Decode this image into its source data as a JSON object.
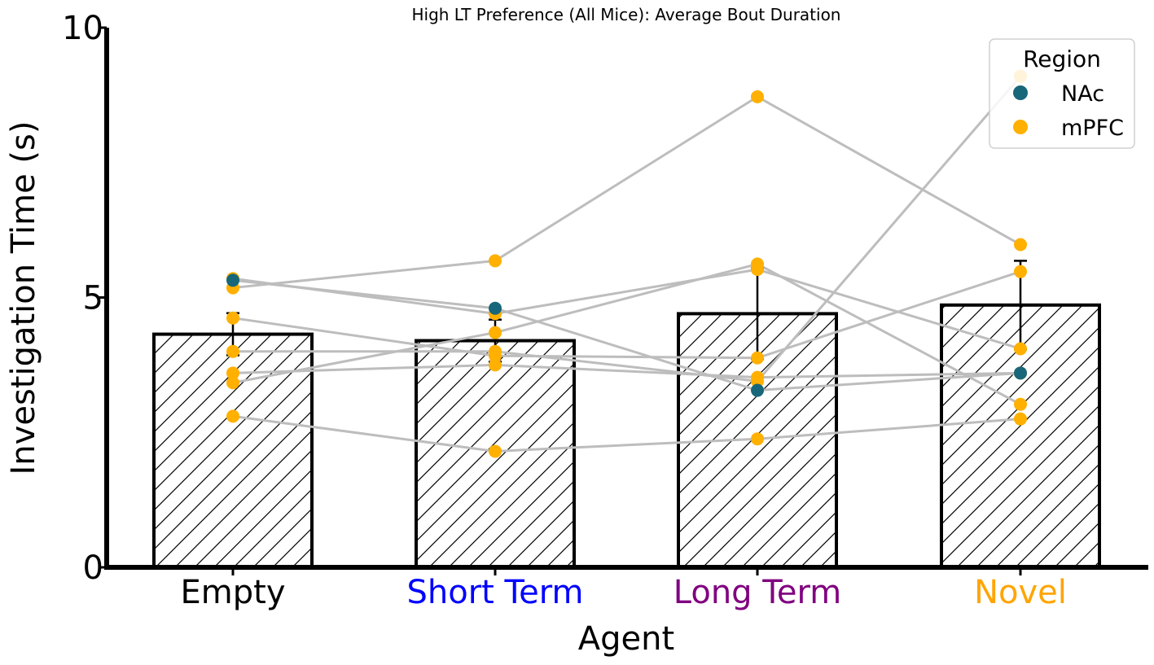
{
  "chart_data": {
    "type": "bar",
    "title": "High LT Preference (All Mice): Average Bout Duration",
    "xlabel": "Agent",
    "ylabel": "Investigation Time (s)",
    "ylim": [
      0,
      10
    ],
    "yticks": [
      0,
      5,
      10
    ],
    "categories": [
      "Empty",
      "Short Term",
      "Long Term",
      "Novel"
    ],
    "category_colors": [
      "#000000",
      "#0000ff",
      "#800080",
      "#ffa500"
    ],
    "bars": [
      {
        "category": "Empty",
        "mean": 4.32,
        "error": 0.39
      },
      {
        "category": "Short Term",
        "mean": 4.2,
        "error": 0.39
      },
      {
        "category": "Long Term",
        "mean": 4.7,
        "error": 0.84
      },
      {
        "category": "Novel",
        "mean": 4.86,
        "error": 0.82
      }
    ],
    "bar_hatch": "diagonal",
    "legend": {
      "title": "Region",
      "position": "top-right",
      "entries": [
        {
          "label": "NAc",
          "color": "#17667a"
        },
        {
          "label": "mPFC",
          "color": "#ffb000"
        }
      ]
    },
    "line_color": "#bdbdbd",
    "subjects": [
      {
        "region": "NAc",
        "values": [
          5.32,
          4.8,
          3.28,
          3.6
        ]
      },
      {
        "region": "mPFC",
        "values": [
          5.35,
          4.7,
          5.52,
          4.05
        ]
      },
      {
        "region": "mPFC",
        "values": [
          5.18,
          5.68,
          8.72,
          5.98
        ]
      },
      {
        "region": "mPFC",
        "values": [
          4.62,
          3.92,
          3.88,
          5.48
        ]
      },
      {
        "region": "mPFC",
        "values": [
          3.6,
          3.75,
          3.52,
          3.6
        ]
      },
      {
        "region": "mPFC",
        "values": [
          3.42,
          4.35,
          5.62,
          3.02
        ]
      },
      {
        "region": "mPFC",
        "values": [
          2.8,
          2.15,
          2.38,
          2.75
        ]
      },
      {
        "region": "mPFC",
        "values": [
          4.0,
          4.0,
          3.45,
          9.1
        ]
      }
    ]
  }
}
